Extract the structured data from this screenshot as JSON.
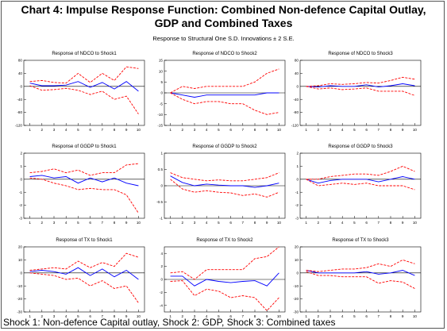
{
  "title_line1": "Chart 4: Impulse Response Function: Combined Non-defence Capital Outlay,",
  "title_line2": "GDP and Combined Taxes",
  "subtitle": "Response to Structural One S.D. Innovations ± 2 S.E.",
  "footer": "Shock 1: Non-defence Capital outlay, Shock 2: GDP, Shock 3: Combined taxes",
  "colors": {
    "response": "#0000ff",
    "band": "#ff0000",
    "zero": "#000000"
  },
  "chart_data": [
    {
      "type": "line",
      "title": "Response of NDCO to Shock1",
      "x": [
        1,
        2,
        3,
        4,
        5,
        6,
        7,
        8,
        9,
        10
      ],
      "ylim": [
        -120,
        80
      ],
      "yticks": [
        80,
        40,
        0,
        -40,
        -80,
        -120
      ],
      "series": [
        {
          "values": [
            10,
            2,
            2,
            4,
            15,
            -3,
            12,
            -8,
            15,
            -15
          ]
        },
        {
          "values": [
            15,
            18,
            12,
            10,
            40,
            12,
            40,
            18,
            60,
            55
          ]
        },
        {
          "values": [
            2,
            -12,
            -10,
            -6,
            -12,
            -25,
            -15,
            -40,
            -30,
            -85
          ]
        }
      ]
    },
    {
      "type": "line",
      "title": "Response of NDCO to Shock2",
      "x": [
        1,
        2,
        3,
        4,
        5,
        6,
        7,
        8,
        9,
        10
      ],
      "ylim": [
        -15,
        15
      ],
      "yticks": [
        15,
        10,
        5,
        0,
        -5,
        -10,
        -15
      ],
      "series": [
        {
          "values": [
            0,
            -1,
            -2,
            -1,
            -1,
            -1,
            -1,
            -1,
            0,
            0
          ]
        },
        {
          "values": [
            0,
            3,
            2,
            3,
            3,
            3,
            3,
            5,
            9,
            11
          ]
        },
        {
          "values": [
            0,
            -3,
            -5,
            -4,
            -4,
            -5,
            -5,
            -8,
            -10,
            -9
          ]
        }
      ]
    },
    {
      "type": "line",
      "title": "Response of NDCO to Shock3",
      "x": [
        1,
        2,
        3,
        4,
        5,
        6,
        7,
        8,
        9,
        10
      ],
      "ylim": [
        -120,
        80
      ],
      "yticks": [
        80,
        40,
        0,
        -40,
        -80,
        -120
      ],
      "series": [
        {
          "values": [
            0,
            -2,
            2,
            0,
            0,
            5,
            -2,
            2,
            8,
            2
          ]
        },
        {
          "values": [
            0,
            2,
            8,
            6,
            8,
            12,
            10,
            18,
            28,
            22
          ]
        },
        {
          "values": [
            0,
            -8,
            -5,
            -10,
            -8,
            -5,
            -15,
            -15,
            -15,
            -28
          ]
        }
      ]
    },
    {
      "type": "line",
      "title": "Response of GGDP to Shock1",
      "x": [
        1,
        2,
        3,
        4,
        5,
        6,
        7,
        8,
        9,
        10
      ],
      "ylim": [
        -3,
        2
      ],
      "yticks": [
        2,
        1,
        0,
        -1,
        -2,
        -3
      ],
      "series": [
        {
          "values": [
            0.2,
            0.3,
            0.1,
            0.2,
            -0.3,
            0.1,
            -0.2,
            0.1,
            -0.3,
            -0.5
          ]
        },
        {
          "values": [
            0.5,
            0.6,
            0.8,
            0.5,
            0.7,
            0.3,
            0.5,
            0.5,
            1.1,
            1.2
          ]
        },
        {
          "values": [
            0.1,
            0.0,
            -0.3,
            -0.5,
            -0.8,
            -0.7,
            -0.8,
            -0.8,
            -1.2,
            -2.6
          ]
        }
      ]
    },
    {
      "type": "line",
      "title": "Response of GGDP to Shock2",
      "x": [
        1,
        2,
        3,
        4,
        5,
        6,
        7,
        8,
        9,
        10
      ],
      "ylim": [
        -1.0,
        1.0
      ],
      "yticks": [
        1.0,
        0.5,
        0.0,
        -0.5,
        -1.0
      ],
      "series": [
        {
          "values": [
            0.3,
            0.1,
            0.0,
            0.05,
            0.02,
            0.0,
            0.0,
            -0.05,
            0.0,
            0.08
          ]
        },
        {
          "values": [
            0.4,
            0.25,
            0.2,
            0.15,
            0.18,
            0.15,
            0.15,
            0.2,
            0.25,
            0.4
          ]
        },
        {
          "values": [
            0.2,
            -0.1,
            -0.2,
            -0.15,
            -0.2,
            -0.22,
            -0.3,
            -0.25,
            -0.35,
            -0.2
          ]
        }
      ]
    },
    {
      "type": "line",
      "title": "Response of GGDP to Shock3",
      "x": [
        1,
        2,
        3,
        4,
        5,
        6,
        7,
        8,
        9,
        10
      ],
      "ylim": [
        -3,
        2
      ],
      "yticks": [
        2,
        1,
        0,
        -1,
        -2,
        -3
      ],
      "series": [
        {
          "values": [
            0,
            -0.3,
            -0.1,
            0.0,
            0.0,
            0.0,
            -0.2,
            0.0,
            0.2,
            0.0
          ]
        },
        {
          "values": [
            0,
            0.0,
            0.2,
            0.3,
            0.4,
            0.4,
            0.3,
            0.6,
            1.0,
            0.6
          ]
        },
        {
          "values": [
            0,
            -0.5,
            -0.4,
            -0.3,
            -0.4,
            -0.3,
            -0.5,
            -0.5,
            -0.5,
            -0.8
          ]
        }
      ]
    },
    {
      "type": "line",
      "title": "Response of TX to Shock1",
      "x": [
        1,
        2,
        3,
        4,
        5,
        6,
        7,
        8,
        9,
        10
      ],
      "ylim": [
        -30,
        20
      ],
      "yticks": [
        20,
        10,
        0,
        -10,
        -20,
        -30
      ],
      "series": [
        {
          "values": [
            1,
            2,
            1,
            -1,
            4,
            -2,
            3,
            -3,
            2,
            -5
          ]
        },
        {
          "values": [
            2,
            3,
            4,
            3,
            9,
            4,
            8,
            5,
            15,
            12
          ]
        },
        {
          "values": [
            0,
            -1,
            -2,
            -5,
            -4,
            -10,
            -6,
            -12,
            -10,
            -23
          ]
        }
      ]
    },
    {
      "type": "line",
      "title": "Response of TX to Shock2",
      "x": [
        1,
        2,
        3,
        4,
        5,
        6,
        7,
        8,
        9,
        10
      ],
      "ylim": [
        -5,
        5
      ],
      "yticks": [
        4,
        2,
        0,
        -2,
        -4
      ],
      "series": [
        {
          "values": [
            0.5,
            0.5,
            -1,
            0,
            -0.3,
            -0.5,
            -0.3,
            -0.2,
            -1,
            1
          ]
        },
        {
          "values": [
            1,
            1.2,
            0,
            1.5,
            1.5,
            1.5,
            1.5,
            3.2,
            3.5,
            5
          ]
        },
        {
          "values": [
            -0.3,
            -0.2,
            -2.5,
            -1.5,
            -1.8,
            -2.8,
            -2.5,
            -2.8,
            -4.8,
            -2.8
          ]
        }
      ]
    },
    {
      "type": "line",
      "title": "Response of TX to Shock3",
      "x": [
        1,
        2,
        3,
        4,
        5,
        6,
        7,
        8,
        9,
        10
      ],
      "ylim": [
        -30,
        20
      ],
      "yticks": [
        20,
        10,
        0,
        -10,
        -20,
        -30
      ],
      "series": [
        {
          "values": [
            2,
            0,
            0,
            0,
            0,
            1,
            -1,
            0,
            2,
            -2
          ]
        },
        {
          "values": [
            2,
            1,
            2,
            3,
            3,
            4,
            7,
            5,
            10,
            7
          ]
        },
        {
          "values": [
            1,
            -2,
            -2,
            -3,
            -3,
            -3,
            -8,
            -6,
            -7,
            -12
          ]
        }
      ]
    }
  ]
}
